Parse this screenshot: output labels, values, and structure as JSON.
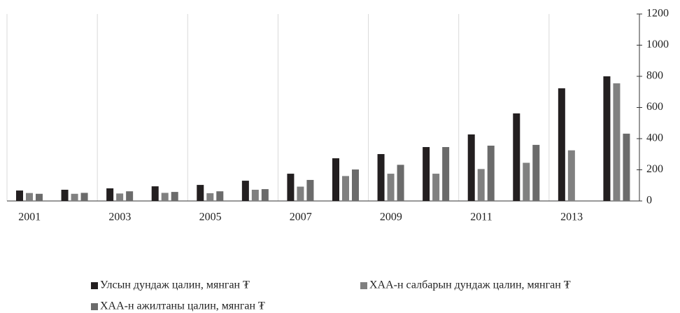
{
  "chart_data": {
    "type": "bar",
    "categories": [
      "2001",
      null,
      "2003",
      null,
      "2005",
      null,
      "2007",
      null,
      "2009",
      null,
      "2011",
      null,
      "2013",
      null
    ],
    "series": [
      {
        "name": "Улсын дундаж цалин, мянган ₮",
        "color": "#231f20",
        "values": [
          67,
          72,
          81,
          94,
          103,
          130,
          175,
          274,
          301,
          346,
          427,
          562,
          723,
          800
        ]
      },
      {
        "name": "ХАА-н салбарын дундаж цалин, мянган ₮",
        "color": "#808080",
        "values": [
          51,
          46,
          48,
          52,
          50,
          72,
          92,
          160,
          175,
          175,
          205,
          245,
          325,
          755
        ]
      },
      {
        "name": "ХАА-н ажилтаны цалин, мянган ₮",
        "color": "#6b6b6b",
        "values": [
          46,
          52,
          62,
          58,
          62,
          76,
          135,
          202,
          232,
          346,
          355,
          360,
          null,
          432
        ]
      }
    ],
    "ylim": [
      0,
      1200
    ],
    "yticks": [
      0,
      200,
      400,
      600,
      800,
      1000,
      1200
    ],
    "axis_side": "right",
    "grid": "x"
  }
}
